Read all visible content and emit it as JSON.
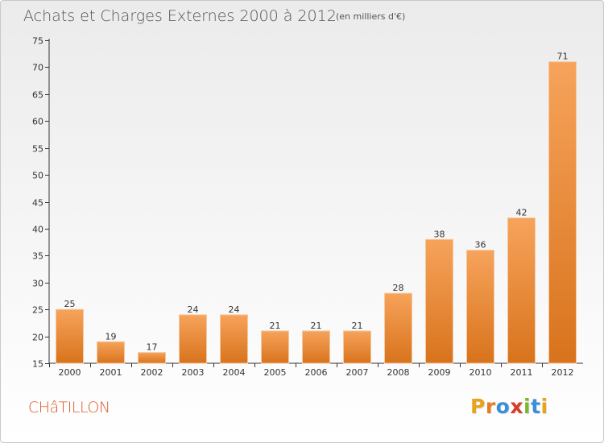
{
  "header": {
    "title": "Achats et Charges Externes 2000 à 2012",
    "unit": "(en milliers d'€)"
  },
  "footer": {
    "commune": "CHâTILLON",
    "logo": [
      "P",
      "r",
      "o",
      "x",
      "i",
      "t",
      "i"
    ],
    "logo_colors": [
      "#e8a21c",
      "#e87d1e",
      "#3a8fd8",
      "#d93a2b",
      "#7cb82f",
      "#3a8fd8",
      "#e8a21c"
    ]
  },
  "colors": {
    "bar_light": "#f7a35b",
    "bar_dark": "#d8731c",
    "commune": "#d85a2a"
  },
  "chart_data": {
    "type": "bar",
    "title": "Achats et Charges Externes 2000 à 2012",
    "subtitle": "(en milliers d'€)",
    "categories": [
      "2000",
      "2001",
      "2002",
      "2003",
      "2004",
      "2005",
      "2006",
      "2007",
      "2008",
      "2009",
      "2010",
      "2011",
      "2012"
    ],
    "values": [
      25,
      19,
      17,
      24,
      24,
      21,
      21,
      21,
      28,
      38,
      36,
      42,
      71
    ],
    "ylim": [
      15,
      75
    ],
    "yticks": [
      15,
      20,
      25,
      30,
      35,
      40,
      45,
      50,
      55,
      60,
      65,
      70,
      75
    ],
    "grid": false,
    "legend": "none"
  }
}
